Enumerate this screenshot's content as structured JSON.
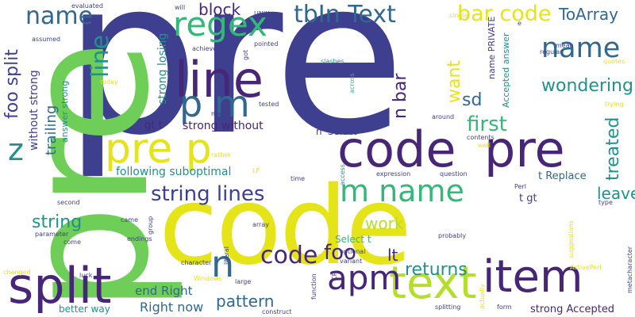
{
  "colors": {
    "background": "#ffffff",
    "dark_purple": "#482677",
    "indigo": "#3f3f8f",
    "blue": "#31688e",
    "teal": "#21918c",
    "green": "#35b779",
    "light_green": "#6ece58",
    "yellow": "#e5e419",
    "yellow_green": "#b5de2b"
  },
  "words": [
    "pre",
    "pre",
    "code",
    "code",
    "pre",
    "split",
    "line",
    "line",
    "regex",
    "item",
    "text",
    "apm",
    "pre p",
    "p m",
    "name",
    "tbIn Text",
    "bar code",
    "ToArray",
    "block",
    "string lines",
    "m name",
    "foo split",
    "name",
    "n",
    "code",
    "foo",
    "returns",
    "work",
    "first",
    "n bar",
    "want",
    "sd",
    "wondering",
    "treated",
    "leave",
    "pattern",
    "end Right",
    "Right now",
    "strong without",
    "string",
    "following suboptimal",
    "trailing",
    "without strong",
    "answer strong",
    "strong losing",
    "gt t",
    "n' Select",
    "t Replace",
    "Select t",
    "lt",
    "better way",
    "strong Accepted",
    "evaluated",
    "assumed",
    "today",
    "UNIX",
    "will",
    "achieve",
    "got",
    "pointed",
    "slashes",
    "double",
    "across",
    "name PRIVATE",
    "Accepted answer",
    "mean",
    "regular",
    "quotes",
    "single",
    "e",
    "tested",
    "mark",
    "around",
    "contents",
    "well",
    "trying",
    "rather",
    "LF",
    "time",
    "access",
    "expression",
    "question",
    "Perl",
    "type",
    "t gt",
    "second",
    "came",
    "group",
    "parameter",
    "come",
    "endings",
    "array",
    "literal",
    "optional",
    "probably",
    "suggestions",
    "variant",
    "character",
    "changed",
    "luck",
    "Windows",
    "large",
    "function",
    "CR",
    "splitting",
    "actually",
    "form",
    "ActivePerl",
    "metacharacter",
    "construct",
    "z"
  ]
}
